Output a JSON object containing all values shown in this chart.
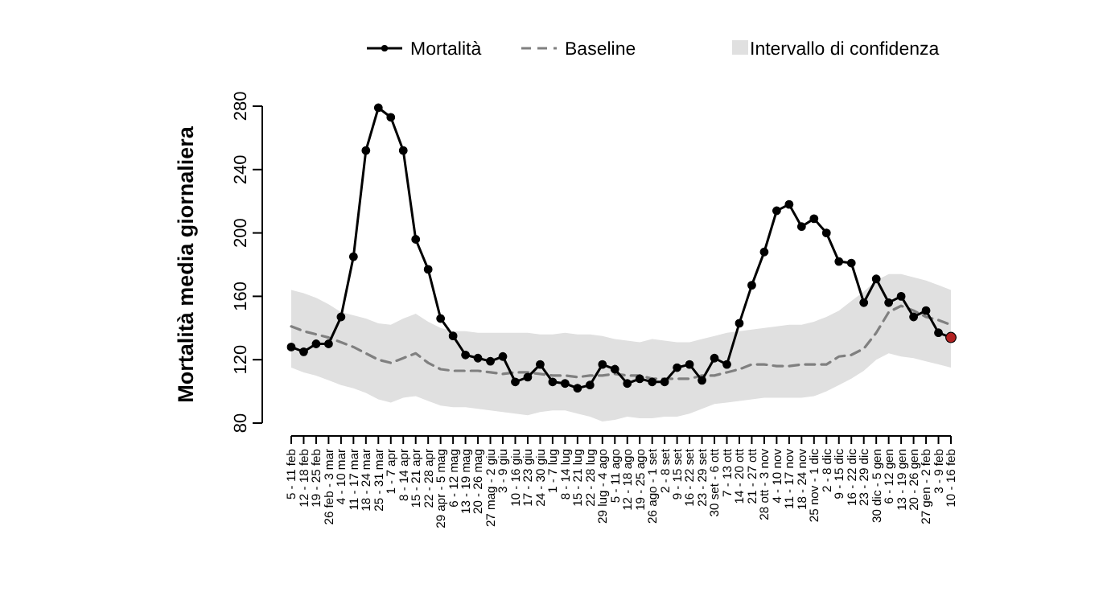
{
  "chart_data": {
    "type": "line",
    "ylabel": "Mortalità media giornaliera",
    "legend": "top",
    "ylim": [
      80,
      280
    ],
    "yticks": [
      80,
      120,
      160,
      200,
      240,
      280
    ],
    "categories": [
      "5 - 11 feb",
      "12 - 18 feb",
      "19 - 25 feb",
      "26 feb - 3 mar",
      "4 - 10 mar",
      "11 - 17 mar",
      "18 - 24 mar",
      "25 - 31 mar",
      "1 - 7 apr",
      "8 - 14 apr",
      "15 - 21 apr",
      "22 - 28 apr",
      "29 apr - 5 mag",
      "6 - 12 mag",
      "13 - 19 mag",
      "20 - 26 mag",
      "27 mag - 2 giu",
      "3 - 9 giu",
      "10 - 16 giu",
      "17 - 23 giu",
      "24 - 30 giu",
      "1 - 7 lug",
      "8 - 14 lug",
      "15 - 21 lug",
      "22 - 28 lug",
      "29 lug - 4 ago",
      "5 - 11 ago",
      "12 - 18 ago",
      "19 - 25 ago",
      "26 ago - 1 set",
      "2 - 8 set",
      "9 - 15 set",
      "16 - 22 set",
      "23 - 29 set",
      "30 set - 6 ott",
      "7 - 13 ott",
      "14 - 20 ott",
      "21 - 27 ott",
      "28 ott - 3 nov",
      "4 - 10 nov",
      "11 - 17 nov",
      "18 - 24 nov",
      "25 nov - 1 dic",
      "2 - 8 dic",
      "9 - 15 dic",
      "16 - 22 dic",
      "23 - 29 dic",
      "30 dic - 5 gen",
      "6 - 12 gen",
      "13 - 19 gen",
      "20 - 26 gen",
      "27 gen - 2 feb",
      "3 - 9 feb",
      "10 - 16 feb"
    ],
    "series": [
      {
        "name": "Intervallo di confidenza",
        "type": "area",
        "color": "#e0e0e0",
        "values": [
          null,
          null,
          null,
          null,
          null,
          null,
          null,
          null,
          null,
          null,
          null,
          null,
          null,
          null,
          null,
          null,
          null,
          null,
          null,
          null,
          null,
          null,
          null,
          null,
          null,
          null,
          null,
          null,
          null,
          null,
          null,
          null,
          null,
          null,
          null,
          null,
          null,
          null,
          null,
          null,
          null,
          null,
          null,
          null,
          null,
          null,
          null,
          null,
          null,
          null,
          null,
          null,
          null,
          null
        ],
        "upper": [
          164,
          162,
          159,
          155,
          150,
          148,
          146,
          143,
          142,
          146,
          149,
          144,
          140,
          138,
          138,
          137,
          137,
          137,
          137,
          137,
          136,
          136,
          137,
          136,
          136,
          135,
          133,
          132,
          131,
          133,
          132,
          131,
          131,
          133,
          135,
          137,
          138,
          139,
          140,
          141,
          142,
          142,
          144,
          147,
          151,
          157,
          163,
          170,
          174,
          174,
          172,
          170,
          167,
          164
        ],
        "lower": [
          115,
          112,
          110,
          107,
          104,
          102,
          99,
          95,
          93,
          96,
          97,
          94,
          91,
          90,
          90,
          89,
          88,
          87,
          86,
          85,
          87,
          88,
          88,
          86,
          84,
          81,
          82,
          84,
          83,
          83,
          84,
          84,
          86,
          89,
          92,
          93,
          94,
          95,
          96,
          96,
          96,
          96,
          97,
          100,
          104,
          108,
          113,
          120,
          124,
          122,
          121,
          119,
          117,
          115
        ]
      },
      {
        "name": "Baseline",
        "color": "#808080",
        "line_style": "dashed",
        "marker": "none",
        "values": [
          141,
          138,
          136,
          134,
          131,
          128,
          124,
          120,
          118,
          121,
          124,
          118,
          114,
          113,
          113,
          113,
          112,
          111,
          112,
          112,
          111,
          110,
          110,
          109,
          110,
          110,
          111,
          110,
          110,
          108,
          108,
          108,
          108,
          110,
          110,
          112,
          114,
          117,
          117,
          116,
          116,
          117,
          117,
          117,
          122,
          123,
          127,
          137,
          150,
          154,
          151,
          147,
          145,
          142
        ]
      },
      {
        "name": "Mortalità",
        "color": "#000000",
        "marker": "circle",
        "line_style": "solid",
        "values": [
          128,
          125,
          130,
          130,
          147,
          185,
          252,
          279,
          273,
          252,
          196,
          177,
          146,
          135,
          123,
          121,
          119,
          122,
          106,
          109,
          117,
          106,
          105,
          102,
          104,
          117,
          114,
          105,
          108,
          106,
          106,
          115,
          117,
          107,
          121,
          117,
          143,
          167,
          188,
          214,
          218,
          204,
          209,
          200,
          182,
          181,
          156,
          171,
          156,
          160,
          147,
          151,
          137,
          134
        ],
        "colors": [
          "#000000",
          "#000000",
          "#000000",
          "#000000",
          "#000000",
          "#000000",
          "#000000",
          "#000000",
          "#000000",
          "#000000",
          "#000000",
          "#000000",
          "#000000",
          "#000000",
          "#000000",
          "#000000",
          "#000000",
          "#000000",
          "#000000",
          "#000000",
          "#000000",
          "#000000",
          "#000000",
          "#000000",
          "#000000",
          "#000000",
          "#000000",
          "#000000",
          "#000000",
          "#000000",
          "#000000",
          "#000000",
          "#000000",
          "#000000",
          "#000000",
          "#000000",
          "#000000",
          "#000000",
          "#000000",
          "#000000",
          "#000000",
          "#000000",
          "#000000",
          "#000000",
          "#000000",
          "#000000",
          "#000000",
          "#000000",
          "#000000",
          "#000000",
          "#000000",
          "#000000",
          "#000000",
          "#b22222"
        ]
      }
    ]
  }
}
